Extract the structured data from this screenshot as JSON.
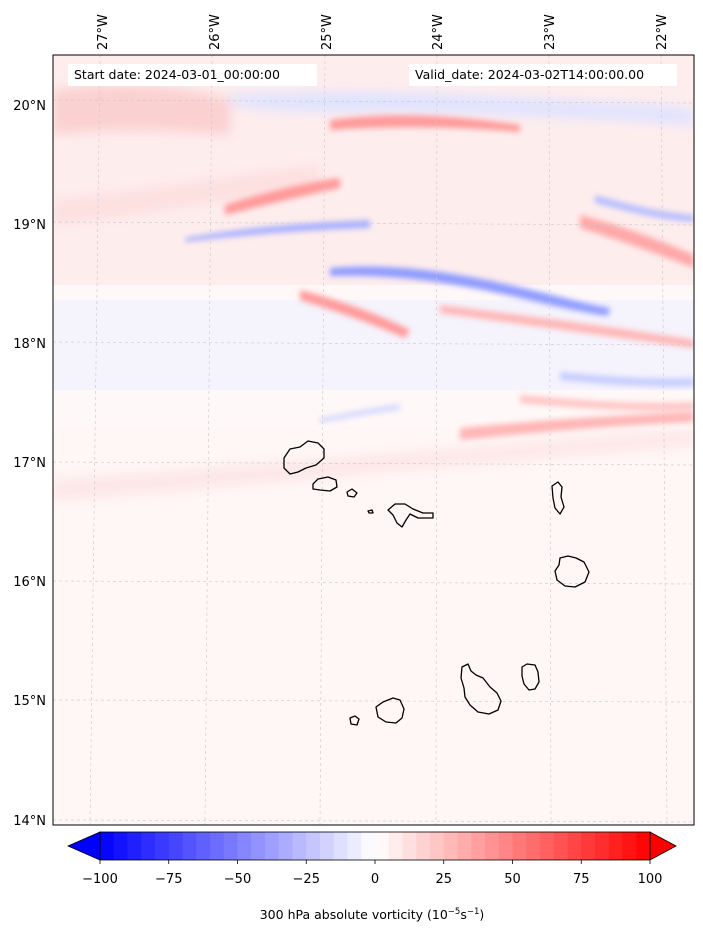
{
  "header": {
    "start_label": "Start date: 2024-03-01_00:00:00",
    "valid_label": "Valid_date: 2024-03-02T14:00:00.00"
  },
  "map": {
    "lon_labels": [
      "27°W",
      "26°W",
      "25°W",
      "24°W",
      "23°W",
      "22°W"
    ],
    "lat_labels": [
      "20°N",
      "19°N",
      "18°N",
      "17°N",
      "16°N",
      "15°N",
      "14°N"
    ],
    "gridlines": true
  },
  "colorbar": {
    "ticks": [
      "−100",
      "−75",
      "−50",
      "−25",
      "0",
      "25",
      "50",
      "75",
      "100"
    ],
    "min": -100,
    "max": 100,
    "label_main": "300 hPa absolute vorticity (10",
    "label_exp1": "−5",
    "label_mid": "s",
    "label_exp2": "−1",
    "label_end": ")",
    "colors": {
      "negative": "#0000ff",
      "zero": "#ffffff",
      "positive": "#ff0000"
    }
  }
}
